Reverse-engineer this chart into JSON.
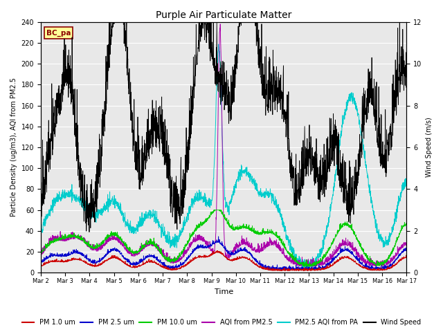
{
  "title": "Purple Air Particulate Matter",
  "xlabel": "Time",
  "ylabel_left": "Particle Density (ug/m3), AQI from PM2.5",
  "ylabel_right": "Wind Speed (m/s)",
  "ylim_left": [
    0,
    240
  ],
  "ylim_right": [
    0,
    12
  ],
  "yticks_left": [
    0,
    20,
    40,
    60,
    80,
    100,
    120,
    140,
    160,
    180,
    200,
    220,
    240
  ],
  "yticks_right": [
    0,
    2,
    4,
    6,
    8,
    10,
    12
  ],
  "xtick_labels": [
    "Mar 2",
    "Mar 3",
    "Mar 4",
    "Mar 5",
    "Mar 6",
    "Mar 7",
    "Mar 8",
    "Mar 9",
    "Mar 10",
    "Mar 11",
    "Mar 12",
    "Mar 13",
    "Mar 14",
    "Mar 15",
    "Mar 16",
    "Mar 17"
  ],
  "box_label": "BC_pa",
  "box_color": "#ffff99",
  "box_text_color": "#8b0000",
  "box_border_color": "#8b0000",
  "colors": {
    "pm1": "#cc0000",
    "pm25": "#0000cc",
    "pm10": "#00cc00",
    "aqi_pm25": "#aa00aa",
    "pm25_aqi_pa": "#00cccc",
    "wind": "#000000"
  },
  "legend_labels": [
    "PM 1.0 um",
    "PM 2.5 um",
    "PM 10.0 um",
    "AQI from PM2.5",
    "PM2.5 AQI from PA",
    "Wind Speed"
  ],
  "bg_color": "#e8e8e8",
  "grid_color": "#ffffff",
  "fig_color": "#ffffff",
  "n_points": 2000
}
